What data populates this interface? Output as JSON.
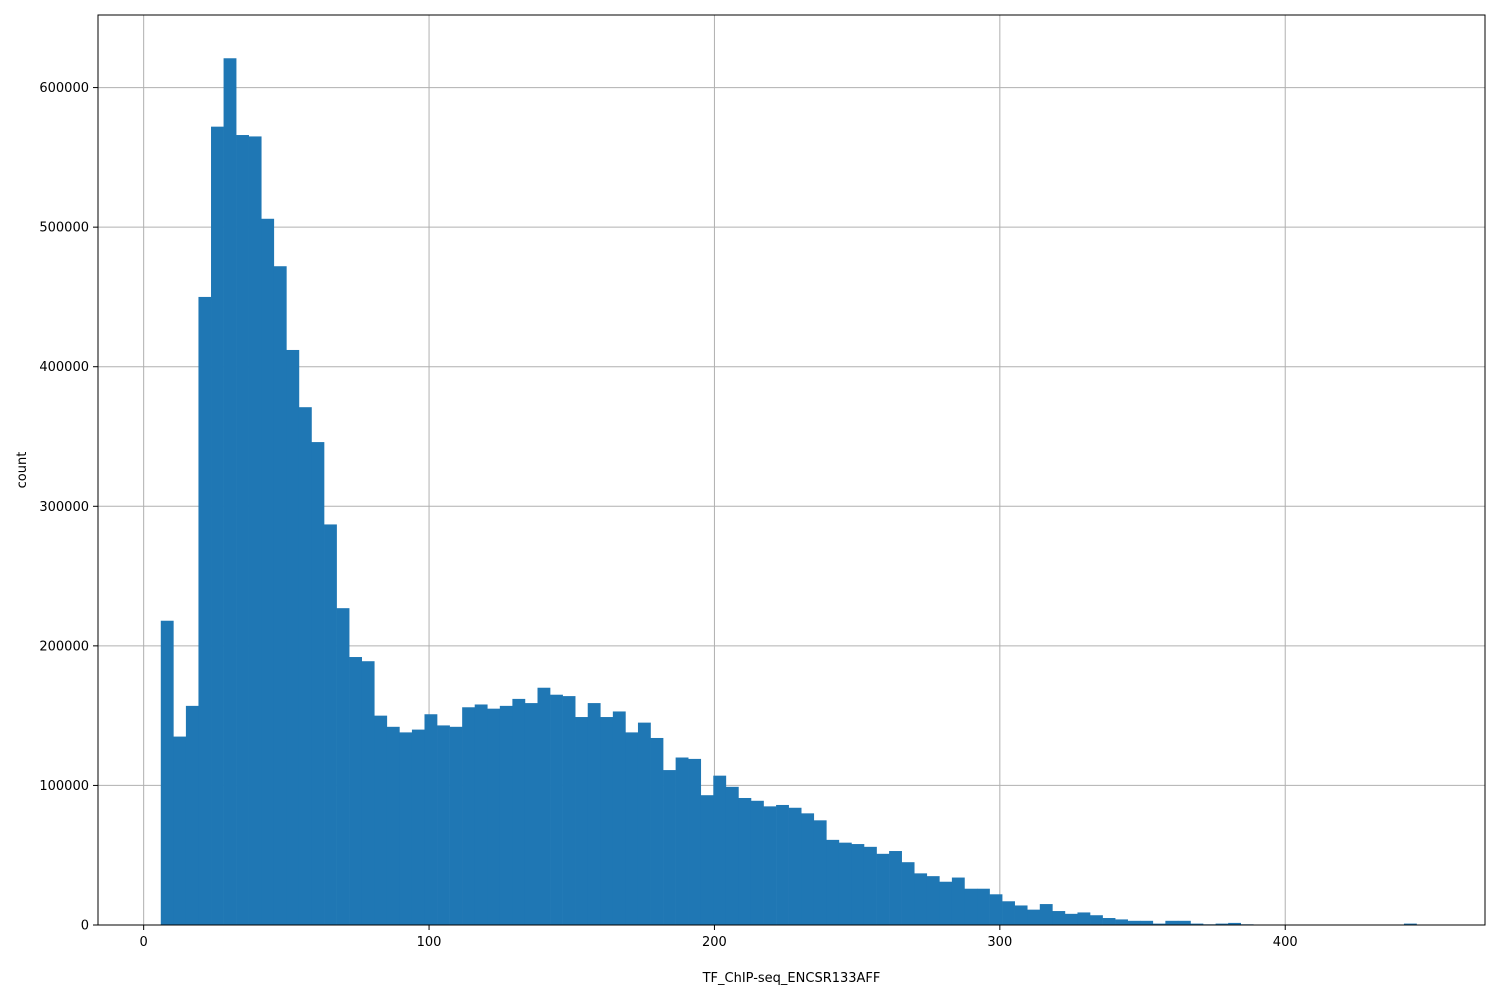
{
  "chart_data": {
    "type": "bar",
    "subtype": "histogram",
    "xlabel": "TF_ChIP-seq_ENCSR133AFF",
    "ylabel": "count",
    "xlim": [
      -16,
      470
    ],
    "ylim": [
      0,
      652000
    ],
    "xticks": [
      0,
      100,
      200,
      300,
      400
    ],
    "yticks": [
      0,
      100000,
      200000,
      300000,
      400000,
      500000,
      600000
    ],
    "grid": true,
    "bar_color": "#1f77b4",
    "bin_start": 6,
    "bin_width": 4.4,
    "values": [
      218000,
      135000,
      157000,
      450000,
      572000,
      621000,
      566000,
      565000,
      506000,
      472000,
      412000,
      371000,
      346000,
      287000,
      227000,
      192000,
      189000,
      150000,
      142000,
      138000,
      140000,
      151000,
      143000,
      142000,
      156000,
      158000,
      155000,
      157000,
      162000,
      159000,
      170000,
      165000,
      164000,
      149000,
      159000,
      149000,
      153000,
      138000,
      145000,
      134000,
      111000,
      120000,
      119000,
      93000,
      107000,
      99000,
      91000,
      89000,
      85000,
      86000,
      84000,
      80000,
      75000,
      61000,
      59000,
      58000,
      56000,
      51000,
      53000,
      45000,
      37000,
      35000,
      31000,
      34000,
      26000,
      26000,
      22000,
      17000,
      14000,
      11000,
      15000,
      10000,
      8000,
      9000,
      7000,
      5000,
      4000,
      3000,
      3000,
      1000,
      3000,
      3000,
      1000,
      500,
      1000,
      1500,
      500,
      200,
      100,
      100,
      100,
      100,
      100,
      100,
      100,
      100,
      100,
      100,
      100,
      1000,
      100,
      100,
      100
    ]
  }
}
